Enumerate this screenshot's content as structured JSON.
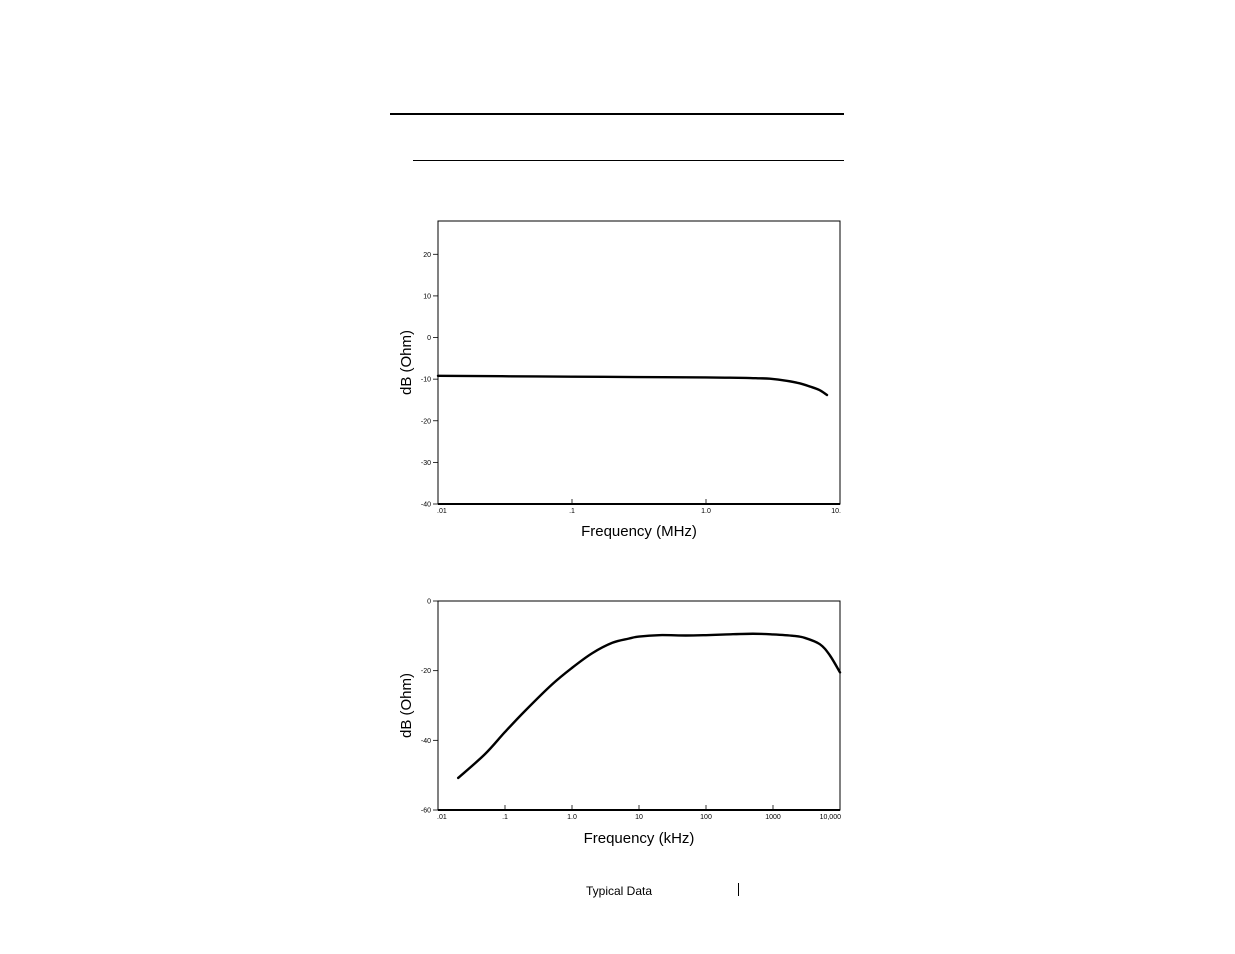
{
  "footer": {
    "text": "Typical Data"
  },
  "chart_data": [
    {
      "type": "line",
      "title": "",
      "xlabel": "Frequency (MHz)",
      "ylabel": "dB (Ohm)",
      "x_scale": "log",
      "xlim": [
        0.01,
        10
      ],
      "ylim": [
        -40,
        28
      ],
      "grid": false,
      "x_ticks": [
        {
          "value": 0.01,
          "label": ".01"
        },
        {
          "value": 0.1,
          "label": ".1"
        },
        {
          "value": 1,
          "label": "1.0"
        },
        {
          "value": 10,
          "label": "10."
        }
      ],
      "y_ticks": [
        {
          "value": 20,
          "label": "20"
        },
        {
          "value": 10,
          "label": "10"
        },
        {
          "value": 0,
          "label": "0"
        },
        {
          "value": -10,
          "label": "-10"
        },
        {
          "value": -20,
          "label": "-20"
        },
        {
          "value": -30,
          "label": "-30"
        },
        {
          "value": -40,
          "label": "-40"
        }
      ],
      "series": [
        {
          "x": [
            0.01,
            0.03,
            0.1,
            0.3,
            1.0,
            1.5,
            2.0,
            2.5,
            3.0,
            4.0,
            5.0,
            6.0,
            7.0,
            8.0
          ],
          "y": [
            -9.2,
            -9.3,
            -9.4,
            -9.5,
            -9.6,
            -9.65,
            -9.7,
            -9.8,
            -9.9,
            -10.4,
            -11.0,
            -11.8,
            -12.6,
            -13.8
          ]
        }
      ]
    },
    {
      "type": "line",
      "title": "",
      "xlabel": "Frequency (kHz)",
      "ylabel": "dB (Ohm)",
      "x_scale": "log",
      "xlim": [
        0.01,
        10000
      ],
      "ylim": [
        -60,
        0
      ],
      "grid": false,
      "x_ticks": [
        {
          "value": 0.01,
          "label": ".01"
        },
        {
          "value": 0.1,
          "label": ".1"
        },
        {
          "value": 1,
          "label": "1.0"
        },
        {
          "value": 10,
          "label": "10"
        },
        {
          "value": 100,
          "label": "100"
        },
        {
          "value": 1000,
          "label": "1000"
        },
        {
          "value": 10000,
          "label": "10,000"
        }
      ],
      "y_ticks": [
        {
          "value": 0,
          "label": "0"
        },
        {
          "value": -20,
          "label": "-20"
        },
        {
          "value": -40,
          "label": "-40"
        },
        {
          "value": -60,
          "label": "-60"
        }
      ],
      "series": [
        {
          "x": [
            0.02,
            0.05,
            0.1,
            0.2,
            0.5,
            1,
            2,
            4,
            7,
            10,
            20,
            50,
            100,
            200,
            500,
            1000,
            2000,
            3000,
            5000,
            7000,
            10000
          ],
          "y": [
            -50.8,
            -44.0,
            -37.6,
            -31.5,
            -24.0,
            -19.2,
            -15.0,
            -12.0,
            -10.8,
            -10.2,
            -9.8,
            -9.9,
            -9.8,
            -9.6,
            -9.4,
            -9.6,
            -10.0,
            -10.6,
            -12.4,
            -15.5,
            -20.5
          ]
        }
      ]
    }
  ]
}
